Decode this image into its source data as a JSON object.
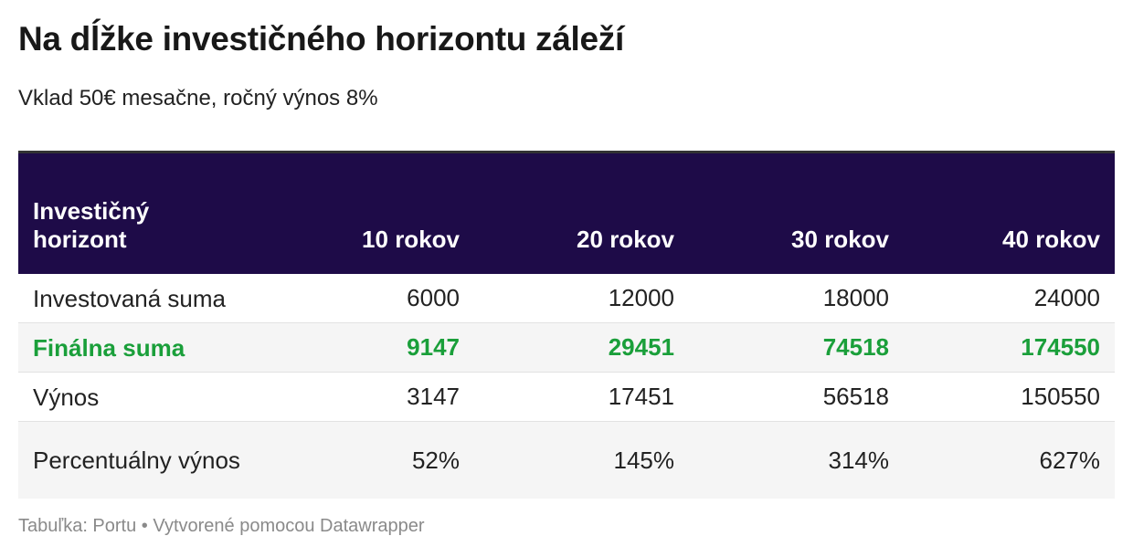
{
  "header": {
    "title": "Na dĺžke investičného horizontu záleží",
    "subtitle": "Vklad 50€ mesačne, ročný výnos 8%"
  },
  "table": {
    "columns": [
      "Investičný horizont",
      "10 rokov",
      "20 rokov",
      "30 rokov",
      "40 rokov"
    ],
    "rows": [
      [
        "Investovaná suma",
        "6000",
        "12000",
        "18000",
        "24000"
      ],
      [
        "Finálna suma",
        "9147",
        "29451",
        "74518",
        "174550"
      ],
      [
        "Výnos",
        "3147",
        "17451",
        "56518",
        "150550"
      ],
      [
        "Percentuálny výnos",
        "52%",
        "145%",
        "314%",
        "627%"
      ]
    ],
    "highlight_row": 1
  },
  "footer": {
    "source": "Tabuľka: Portu • Vytvorené pomocou Datawrapper"
  }
}
